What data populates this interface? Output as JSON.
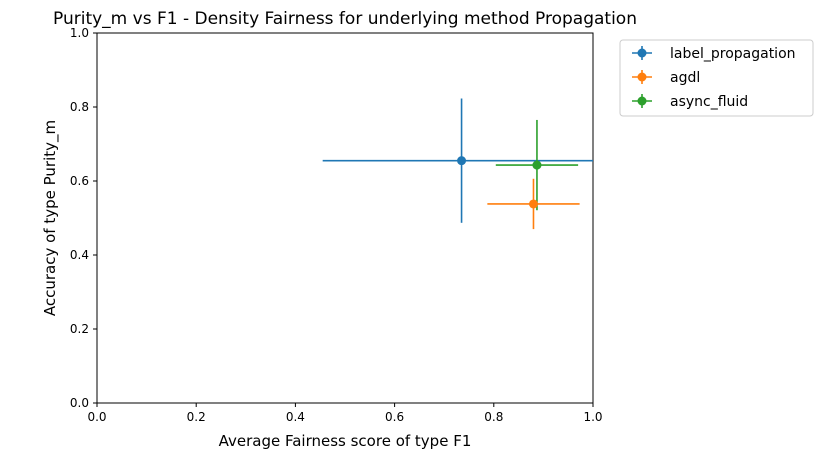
{
  "chart_data": {
    "type": "scatter",
    "title": "Purity_m vs F1 - Density Fairness for underlying method Propagation",
    "xlabel": "Average Fairness score of type F1",
    "ylabel": "Accuracy of type Purity_m",
    "xlim": [
      0.0,
      1.0
    ],
    "ylim": [
      0.0,
      1.0
    ],
    "xticks": [
      "0.0",
      "0.2",
      "0.4",
      "0.6",
      "0.8",
      "1.0"
    ],
    "yticks": [
      "0.0",
      "0.2",
      "0.4",
      "0.6",
      "0.8",
      "1.0"
    ],
    "grid": false,
    "legend_position": "outside-top-right",
    "series": [
      {
        "name": "label_propagation",
        "color": "#1f77b4",
        "x": 0.735,
        "y": 0.655,
        "xerr": 0.28,
        "yerr": 0.168
      },
      {
        "name": "agdl",
        "color": "#ff7f0e",
        "x": 0.88,
        "y": 0.538,
        "xerr": 0.093,
        "yerr": 0.068
      },
      {
        "name": "async_fluid",
        "color": "#2ca02c",
        "x": 0.887,
        "y": 0.643,
        "xerr": 0.083,
        "yerr": 0.122
      }
    ]
  }
}
